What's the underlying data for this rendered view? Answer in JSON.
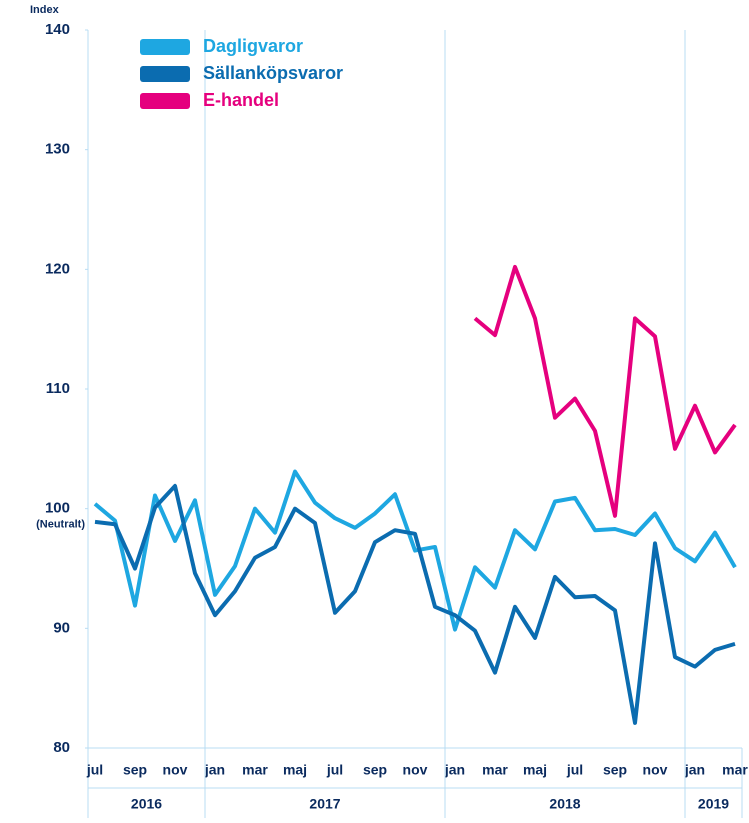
{
  "chart_data": {
    "type": "line",
    "y_axis_label": "Index",
    "categories": [
      "jul",
      null,
      "sep",
      null,
      "nov",
      null,
      "jan",
      null,
      "mar",
      null,
      "maj",
      null,
      "jul",
      null,
      "sep",
      null,
      "nov",
      null,
      "jan",
      null,
      "mar",
      null,
      "maj",
      null,
      "jul",
      null,
      "sep",
      null,
      "nov",
      null,
      "jan",
      null,
      "mar"
    ],
    "year_labels": [
      "2016",
      "2017",
      "2018",
      "2019"
    ],
    "series": [
      {
        "name": "Dagligvaror",
        "color": "#1ea7e1",
        "values": [
          100.4,
          99.0,
          91.9,
          101.1,
          97.3,
          100.7,
          92.8,
          95.2,
          100.0,
          98.0,
          103.1,
          100.5,
          99.2,
          98.4,
          99.6,
          101.2,
          96.5,
          96.8,
          89.9,
          95.1,
          93.4,
          98.2,
          96.6,
          100.6,
          100.9,
          98.2,
          98.3,
          97.8,
          99.6,
          96.7,
          95.6,
          98.0,
          95.1
        ]
      },
      {
        "name": "Sällanköpsvaror",
        "color": "#0b6cb0",
        "values": [
          98.9,
          98.7,
          95.0,
          100.1,
          101.9,
          94.6,
          91.1,
          93.1,
          95.9,
          96.8,
          100.0,
          98.8,
          91.3,
          93.1,
          97.2,
          98.2,
          97.9,
          91.8,
          91.1,
          89.8,
          86.3,
          91.8,
          89.2,
          94.3,
          92.6,
          92.7,
          91.5,
          82.1,
          97.1,
          87.6,
          86.8,
          88.2,
          88.7
        ]
      },
      {
        "name": "E-handel",
        "color": "#e5007e",
        "values": [
          null,
          null,
          null,
          null,
          null,
          null,
          null,
          null,
          null,
          null,
          null,
          null,
          null,
          null,
          null,
          null,
          null,
          null,
          null,
          115.9,
          114.5,
          120.2,
          115.9,
          107.6,
          109.2,
          106.5,
          99.4,
          115.9,
          114.4,
          105.0,
          108.6,
          104.7,
          107.0
        ]
      }
    ],
    "reference_line": {
      "value": 100,
      "label": "(Neutralt)"
    },
    "ylim": [
      80,
      140
    ],
    "yticks": [
      80,
      90,
      100,
      110,
      120,
      130,
      140
    ],
    "legend": "top-left"
  }
}
